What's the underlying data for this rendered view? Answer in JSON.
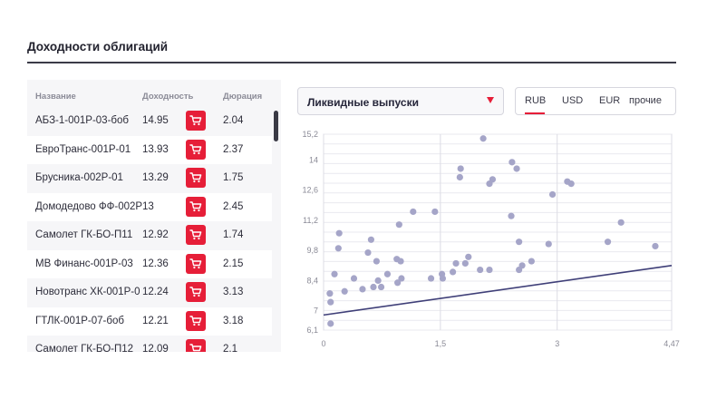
{
  "page": {
    "title": "Доходности облигаций"
  },
  "table": {
    "headers": {
      "name": "Название",
      "yield": "Доходность",
      "duration": "Дюрация"
    },
    "rows": [
      {
        "name": "АБЗ-1-001Р-03-боб",
        "yield": "14.95",
        "duration": "2.04"
      },
      {
        "name": "ЕвроТранс-001Р-01",
        "yield": "13.93",
        "duration": "2.37"
      },
      {
        "name": "Брусника-002Р-01",
        "yield": "13.29",
        "duration": "1.75"
      },
      {
        "name": "Домодедово ФФ-002Р",
        "yield": "13",
        "duration": "2.45"
      },
      {
        "name": "Самолет ГК-БО-П11",
        "yield": "12.92",
        "duration": "1.74"
      },
      {
        "name": "МВ Финанс-001Р-03",
        "yield": "12.36",
        "duration": "2.15"
      },
      {
        "name": "Новотранс ХК-001Р-0",
        "yield": "12.24",
        "duration": "3.13"
      },
      {
        "name": "ГТЛК-001Р-07-боб",
        "yield": "12.21",
        "duration": "3.18"
      },
      {
        "name": "Самолет ГК-БО-П12",
        "yield": "12.09",
        "duration": "2.1"
      }
    ],
    "cart_icon": "cart-icon",
    "accent_color": "#e61e38"
  },
  "filters": {
    "issue_type": {
      "selected": "Ликвидные выпуски"
    },
    "currencies": [
      "RUB",
      "USD",
      "EUR",
      "прочие"
    ],
    "active_currency": "RUB"
  },
  "chart_data": {
    "type": "scatter",
    "title": "",
    "xlabel": "",
    "ylabel": "",
    "xlim": [
      0,
      4.47
    ],
    "ylim": [
      6.1,
      15.2
    ],
    "x_ticks": [
      "0",
      "1,5",
      "3",
      "4,47"
    ],
    "y_ticks": [
      "6,1",
      "7",
      "8,4",
      "9,8",
      "11,2",
      "12,6",
      "14",
      "15,2"
    ],
    "grid": true,
    "point_color": "#a5a5c8",
    "line_color": "#3f3f78",
    "points": [
      [
        0.08,
        7.8
      ],
      [
        0.09,
        7.4
      ],
      [
        0.09,
        6.4
      ],
      [
        0.14,
        8.7
      ],
      [
        0.19,
        9.9
      ],
      [
        0.2,
        10.6
      ],
      [
        0.27,
        7.9
      ],
      [
        0.39,
        8.5
      ],
      [
        0.5,
        8.0
      ],
      [
        0.57,
        9.7
      ],
      [
        0.61,
        10.3
      ],
      [
        0.64,
        8.1
      ],
      [
        0.68,
        9.3
      ],
      [
        0.7,
        8.4
      ],
      [
        0.74,
        8.1
      ],
      [
        0.82,
        8.7
      ],
      [
        0.94,
        9.4
      ],
      [
        0.95,
        8.3
      ],
      [
        0.97,
        11.0
      ],
      [
        0.99,
        9.3
      ],
      [
        1.0,
        8.5
      ],
      [
        1.15,
        11.6
      ],
      [
        1.38,
        8.5
      ],
      [
        1.43,
        11.6
      ],
      [
        1.52,
        8.7
      ],
      [
        1.53,
        8.5
      ],
      [
        1.66,
        8.8
      ],
      [
        1.7,
        9.2
      ],
      [
        1.75,
        13.2
      ],
      [
        1.76,
        13.6
      ],
      [
        1.82,
        9.2
      ],
      [
        1.86,
        9.5
      ],
      [
        2.01,
        8.9
      ],
      [
        2.05,
        15.0
      ],
      [
        2.13,
        8.9
      ],
      [
        2.13,
        12.9
      ],
      [
        2.17,
        13.1
      ],
      [
        2.41,
        11.4
      ],
      [
        2.42,
        13.9
      ],
      [
        2.48,
        13.6
      ],
      [
        2.51,
        10.2
      ],
      [
        2.51,
        8.9
      ],
      [
        2.55,
        9.1
      ],
      [
        2.67,
        9.3
      ],
      [
        2.89,
        10.1
      ],
      [
        2.94,
        12.4
      ],
      [
        3.13,
        13.0
      ],
      [
        3.18,
        12.9
      ],
      [
        3.65,
        10.2
      ],
      [
        3.82,
        11.1
      ],
      [
        4.26,
        10.0
      ]
    ],
    "trend_line": [
      [
        0,
        6.8
      ],
      [
        4.47,
        9.1
      ]
    ]
  }
}
